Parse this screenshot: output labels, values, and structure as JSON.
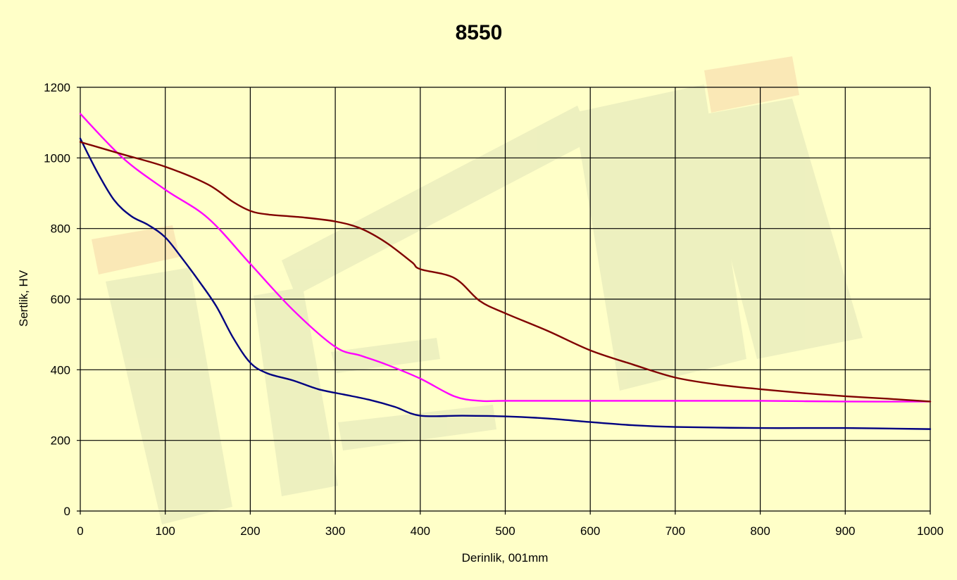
{
  "chart_data": {
    "type": "line",
    "title": "8550",
    "xlabel": "Derinlik, 001mm",
    "ylabel": "Sertlik, HV",
    "xlim": [
      0,
      1000
    ],
    "ylim": [
      0,
      1200
    ],
    "xticks": [
      "0",
      "100",
      "200",
      "300",
      "400",
      "500",
      "600",
      "700",
      "800",
      "900",
      "1000"
    ],
    "yticks": [
      "0",
      "200",
      "400",
      "600",
      "800",
      "1000",
      "1200"
    ],
    "grid": true,
    "series": [
      {
        "color": "#000080",
        "points": [
          [
            0,
            1055
          ],
          [
            20,
            960
          ],
          [
            40,
            880
          ],
          [
            60,
            835
          ],
          [
            80,
            810
          ],
          [
            100,
            775
          ],
          [
            120,
            715
          ],
          [
            140,
            650
          ],
          [
            160,
            580
          ],
          [
            180,
            490
          ],
          [
            200,
            420
          ],
          [
            220,
            390
          ],
          [
            250,
            370
          ],
          [
            280,
            345
          ],
          [
            310,
            330
          ],
          [
            340,
            315
          ],
          [
            370,
            295
          ],
          [
            400,
            270
          ],
          [
            450,
            270
          ],
          [
            500,
            268
          ],
          [
            550,
            262
          ],
          [
            600,
            252
          ],
          [
            650,
            243
          ],
          [
            700,
            238
          ],
          [
            800,
            235
          ],
          [
            900,
            235
          ],
          [
            1000,
            232
          ]
        ]
      },
      {
        "color": "#ff00ff",
        "points": [
          [
            0,
            1125
          ],
          [
            50,
            1000
          ],
          [
            100,
            910
          ],
          [
            150,
            830
          ],
          [
            200,
            700
          ],
          [
            250,
            570
          ],
          [
            300,
            465
          ],
          [
            330,
            440
          ],
          [
            360,
            415
          ],
          [
            400,
            375
          ],
          [
            440,
            325
          ],
          [
            470,
            312
          ],
          [
            500,
            312
          ],
          [
            600,
            312
          ],
          [
            700,
            312
          ],
          [
            800,
            312
          ],
          [
            900,
            310
          ],
          [
            1000,
            310
          ]
        ]
      },
      {
        "color": "#800000",
        "points": [
          [
            0,
            1045
          ],
          [
            50,
            1010
          ],
          [
            100,
            975
          ],
          [
            150,
            925
          ],
          [
            180,
            875
          ],
          [
            200,
            850
          ],
          [
            220,
            840
          ],
          [
            260,
            832
          ],
          [
            300,
            820
          ],
          [
            330,
            800
          ],
          [
            360,
            760
          ],
          [
            390,
            705
          ],
          [
            400,
            685
          ],
          [
            440,
            660
          ],
          [
            470,
            595
          ],
          [
            500,
            560
          ],
          [
            550,
            510
          ],
          [
            600,
            455
          ],
          [
            650,
            415
          ],
          [
            700,
            378
          ],
          [
            750,
            358
          ],
          [
            800,
            345
          ],
          [
            850,
            334
          ],
          [
            900,
            325
          ],
          [
            950,
            318
          ],
          [
            1000,
            310
          ]
        ]
      }
    ]
  }
}
